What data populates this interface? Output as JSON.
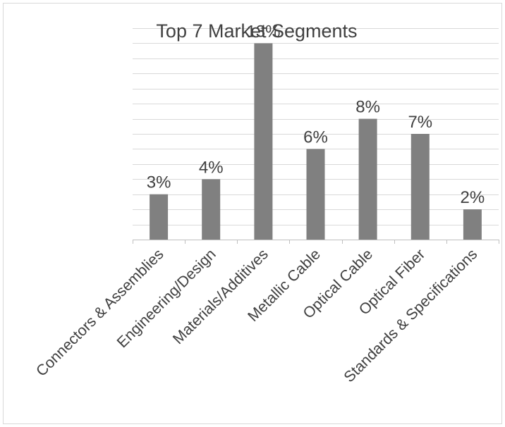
{
  "chart_data": {
    "type": "bar",
    "title": "Top 7 Market Segments",
    "categories": [
      "Connectors & Assemblies",
      "Engineering/Design",
      "Materials/Additives",
      "Metallic Cable",
      "Optical Cable",
      "Optical Fiber",
      "Standards & Specifications"
    ],
    "values": [
      3,
      4,
      13,
      6,
      8,
      7,
      2
    ],
    "data_labels": [
      "3%",
      "4%",
      "13%",
      "6%",
      "8%",
      "7%",
      "2%"
    ],
    "value_unit": "%",
    "ylim": [
      0,
      14
    ],
    "grid": true,
    "legend": "none",
    "bar_color": "#808080",
    "text_color": "#404040",
    "grid_color": "#d9d9d9"
  }
}
